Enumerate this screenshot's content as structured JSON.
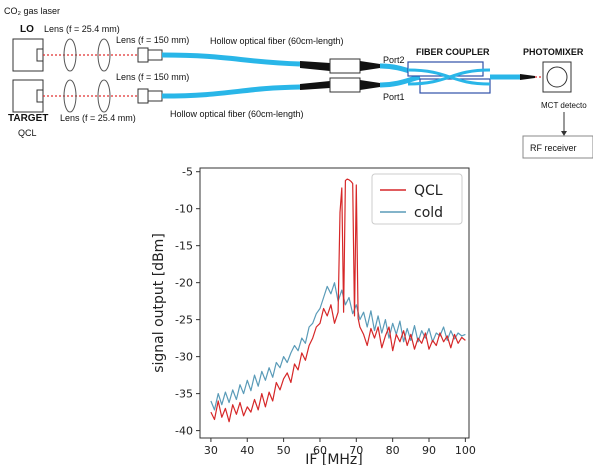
{
  "diagram": {
    "title_laser": "CO₂ gas laser",
    "lo_label": "LO",
    "target_label": "TARGET",
    "qcl_label": "QCL",
    "lens_large_top": "Lens (f = 25.4 mm)",
    "lens_large_bottom": "Lens (f = 25.4 mm)",
    "lens_small_top": "Lens (f = 150 mm)",
    "lens_small_bottom": "Lens (f = 150 mm)",
    "fiber_top": "Hollow optical fiber (60cm-length)",
    "fiber_bottom": "Hollow optical fiber (60cm-length)",
    "port2": "Port2",
    "port1": "Port1",
    "fiber_coupler": "FIBER COUPLER",
    "photomixer": "PHOTOMIXER",
    "mct_detector": "MCT detecto",
    "rf_receiver": "RF receiver",
    "colors": {
      "fiber": "#29b6e8",
      "beam": "#e03030"
    }
  },
  "chart_data": {
    "type": "line",
    "xlabel": "IF [MHz]",
    "ylabel": "signal output [dBm]",
    "xlim": [
      27,
      101
    ],
    "ylim": [
      -41,
      -4.5
    ],
    "xticks": [
      "30",
      "40",
      "50",
      "60",
      "70",
      "80",
      "90",
      "100"
    ],
    "xtick_values": [
      30,
      40,
      50,
      60,
      70,
      80,
      90,
      100
    ],
    "yticks": [
      "-5",
      "-10",
      "-15",
      "-20",
      "-25",
      "-30",
      "-35",
      "-40"
    ],
    "ytick_values": [
      -5,
      -10,
      -15,
      -20,
      -25,
      -30,
      -35,
      -40
    ],
    "legend_position": "top-right",
    "series": [
      {
        "name": "QCL",
        "color": "#d62728",
        "x": [
          30,
          31,
          32,
          33,
          34,
          35,
          36,
          37,
          38,
          39,
          40,
          41,
          42,
          43,
          44,
          45,
          46,
          47,
          48,
          49,
          50,
          51,
          52,
          53,
          54,
          55,
          56,
          57,
          58,
          59,
          60,
          61,
          62,
          63,
          64,
          65,
          65.5,
          66,
          66.5,
          67,
          67.5,
          68,
          68.5,
          69,
          69.5,
          70,
          70.5,
          71,
          72,
          73,
          74,
          75,
          76,
          77,
          78,
          79,
          80,
          81,
          82,
          83,
          84,
          85,
          86,
          87,
          88,
          89,
          90,
          91,
          92,
          93,
          94,
          95,
          96,
          97,
          98,
          99,
          100
        ],
        "y": [
          -37.5,
          -38.5,
          -36.0,
          -38.2,
          -37.0,
          -38.8,
          -36.5,
          -37.8,
          -36.2,
          -38.0,
          -36.8,
          -37.5,
          -35.8,
          -37.2,
          -35.0,
          -36.8,
          -34.8,
          -36.0,
          -33.5,
          -34.5,
          -33.0,
          -32.2,
          -33.5,
          -31.0,
          -31.8,
          -29.5,
          -30.5,
          -28.5,
          -27.5,
          -26.0,
          -25.5,
          -23.5,
          -24.5,
          -23.0,
          -25.5,
          -24.0,
          -10.5,
          -7.2,
          -24.0,
          -6.2,
          -6.0,
          -6.1,
          -6.3,
          -6.6,
          -24.5,
          -6.8,
          -24.8,
          -26.0,
          -27.0,
          -28.5,
          -26.2,
          -27.5,
          -26.0,
          -28.8,
          -27.2,
          -26.0,
          -29.2,
          -27.0,
          -28.0,
          -26.5,
          -28.5,
          -27.0,
          -29.0,
          -27.5,
          -28.2,
          -26.8,
          -29.0,
          -27.8,
          -28.5,
          -26.8,
          -28.0,
          -27.2,
          -28.8,
          -27.0,
          -28.2,
          -27.4,
          -27.8
        ]
      },
      {
        "name": "cold",
        "color": "#5a9bb8",
        "x": [
          30,
          31,
          32,
          33,
          34,
          35,
          36,
          37,
          38,
          39,
          40,
          41,
          42,
          43,
          44,
          45,
          46,
          47,
          48,
          49,
          50,
          51,
          52,
          53,
          54,
          55,
          56,
          57,
          58,
          59,
          60,
          61,
          62,
          63,
          64,
          65,
          66,
          67,
          68,
          69,
          70,
          71,
          72,
          73,
          74,
          75,
          76,
          77,
          78,
          79,
          80,
          81,
          82,
          83,
          84,
          85,
          86,
          87,
          88,
          89,
          90,
          91,
          92,
          93,
          94,
          95,
          96,
          97,
          98,
          99,
          100
        ],
        "y": [
          -36.0,
          -37.2,
          -35.0,
          -36.5,
          -34.8,
          -36.2,
          -34.5,
          -35.8,
          -33.8,
          -35.0,
          -33.2,
          -34.6,
          -32.5,
          -34.0,
          -32.0,
          -33.2,
          -31.5,
          -32.8,
          -30.8,
          -31.5,
          -30.0,
          -30.8,
          -29.5,
          -28.5,
          -29.2,
          -27.5,
          -28.2,
          -26.0,
          -25.5,
          -24.2,
          -23.5,
          -22.0,
          -20.5,
          -21.5,
          -20.0,
          -22.5,
          -21.0,
          -23.0,
          -22.0,
          -24.2,
          -23.0,
          -25.0,
          -24.0,
          -26.0,
          -23.8,
          -26.5,
          -24.5,
          -26.8,
          -25.0,
          -27.5,
          -25.5,
          -27.0,
          -25.2,
          -28.0,
          -26.2,
          -27.8,
          -25.8,
          -28.0,
          -26.5,
          -27.5,
          -26.2,
          -28.0,
          -26.8,
          -27.2,
          -26.0,
          -27.8,
          -26.5,
          -27.6,
          -26.8,
          -27.2,
          -27.0
        ]
      }
    ]
  }
}
